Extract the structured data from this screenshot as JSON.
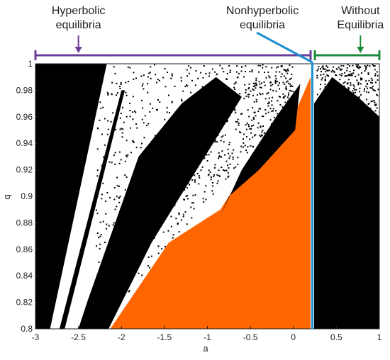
{
  "chart_data": {
    "type": "heatmap",
    "title": "",
    "xlabel": "a",
    "ylabel": "q",
    "xlim": [
      -3,
      1
    ],
    "ylim": [
      0.8,
      1
    ],
    "grid": false,
    "x_ticks": [
      {
        "value": -3,
        "label": "-3"
      },
      {
        "value": -2.5,
        "label": "-2.5"
      },
      {
        "value": -2,
        "label": "-2"
      },
      {
        "value": -1.5,
        "label": "-1.5"
      },
      {
        "value": -1,
        "label": "-1"
      },
      {
        "value": -0.5,
        "label": "-0.5"
      },
      {
        "value": 0,
        "label": "0"
      },
      {
        "value": 0.5,
        "label": "0.5"
      },
      {
        "value": 1,
        "label": "1"
      }
    ],
    "y_ticks": [
      {
        "value": 0.8,
        "label": "0.8"
      },
      {
        "value": 0.82,
        "label": "0.82"
      },
      {
        "value": 0.84,
        "label": "0.84"
      },
      {
        "value": 0.86,
        "label": "0.86"
      },
      {
        "value": 0.88,
        "label": "0.88"
      },
      {
        "value": 0.9,
        "label": "0.9"
      },
      {
        "value": 0.92,
        "label": "0.92"
      },
      {
        "value": 0.94,
        "label": "0.94"
      },
      {
        "value": 0.96,
        "label": "0.96"
      },
      {
        "value": 0.98,
        "label": "0.98"
      },
      {
        "value": 1,
        "label": "1"
      }
    ],
    "colors": {
      "chaotic": "#000000",
      "regular": "#ffffff",
      "hidden": "#ff6600"
    },
    "regions": [
      {
        "name": "black-left-wedge",
        "color": "#000000",
        "polygon": [
          [
            -3,
            0.8
          ],
          [
            -2.83,
            0.8
          ],
          [
            -2.17,
            1.0
          ],
          [
            -3,
            1.0
          ]
        ]
      },
      {
        "name": "black-diagonal-stripe",
        "color": "#000000",
        "polygon": [
          [
            -2.72,
            0.8
          ],
          [
            -2.66,
            0.8
          ],
          [
            -1.96,
            0.98
          ],
          [
            -2.0,
            0.98
          ]
        ]
      },
      {
        "name": "black-scatter-band",
        "color": "#000000",
        "polygon": [
          [
            -2.15,
            0.8
          ],
          [
            -1.65,
            0.865
          ],
          [
            -0.6,
            0.975
          ],
          [
            -0.9,
            0.99
          ],
          [
            -1.3,
            0.97
          ],
          [
            -1.8,
            0.93
          ],
          [
            -2.4,
            0.82
          ],
          [
            -2.5,
            0.8
          ]
        ]
      },
      {
        "name": "orange-triangle",
        "color": "#ff6600",
        "polygon": [
          [
            -2.13,
            0.8
          ],
          [
            0.2,
            0.8
          ],
          [
            0.2,
            0.99
          ],
          [
            0.0,
            0.96
          ],
          [
            -0.55,
            0.92
          ],
          [
            -0.85,
            0.89
          ],
          [
            -1.45,
            0.865
          ]
        ]
      },
      {
        "name": "black-blade",
        "color": "#000000",
        "polygon": [
          [
            -0.85,
            0.885
          ],
          [
            -0.6,
            0.92
          ],
          [
            -0.2,
            0.96
          ],
          [
            0.08,
            0.985
          ],
          [
            0.02,
            0.95
          ],
          [
            -0.4,
            0.92
          ],
          [
            -0.75,
            0.9
          ]
        ]
      },
      {
        "name": "black-right-block",
        "color": "#000000",
        "polygon": [
          [
            0.24,
            0.8
          ],
          [
            1.0,
            0.8
          ],
          [
            1.0,
            0.96
          ],
          [
            0.75,
            0.975
          ],
          [
            0.45,
            0.99
          ],
          [
            0.24,
            0.97
          ]
        ]
      }
    ],
    "annotations": [
      {
        "text": "Hyperbolic equilibria",
        "lines": [
          "Hyperbolic",
          "equilibria"
        ],
        "color": "#6a3d9a",
        "range_a": [
          -3,
          0.2
        ],
        "arrow_a": -2.5
      },
      {
        "text": "Nonhyperbolic equilibria",
        "lines": [
          "Nonhyperbolic",
          "equilibria"
        ],
        "color": "#1b8fd0",
        "line_a": 0.22
      },
      {
        "text": "Without Equilibria",
        "lines": [
          "Without",
          "Equilibria"
        ],
        "color": "#1a8a3a",
        "range_a": [
          0.25,
          1
        ],
        "arrow_a": 0.78
      }
    ]
  }
}
